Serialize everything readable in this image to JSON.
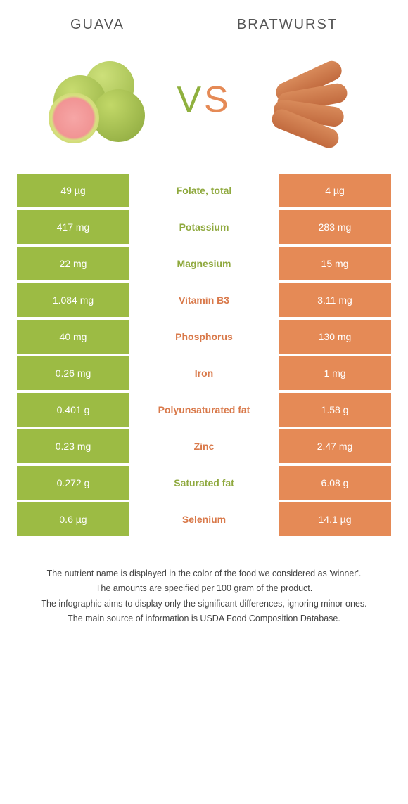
{
  "colors": {
    "left": "#9cbb44",
    "right": "#e58a56",
    "left_text": "#8fa93e",
    "right_text": "#d9794a"
  },
  "header": {
    "left_title": "Guava",
    "right_title": "Bratwurst",
    "vs_v": "V",
    "vs_s": "S"
  },
  "rows": [
    {
      "left": "49 µg",
      "label": "Folate, total",
      "right": "4 µg",
      "winner": "left"
    },
    {
      "left": "417 mg",
      "label": "Potassium",
      "right": "283 mg",
      "winner": "left"
    },
    {
      "left": "22 mg",
      "label": "Magnesium",
      "right": "15 mg",
      "winner": "left"
    },
    {
      "left": "1.084 mg",
      "label": "Vitamin B3",
      "right": "3.11 mg",
      "winner": "right"
    },
    {
      "left": "40 mg",
      "label": "Phosphorus",
      "right": "130 mg",
      "winner": "right"
    },
    {
      "left": "0.26 mg",
      "label": "Iron",
      "right": "1 mg",
      "winner": "right"
    },
    {
      "left": "0.401 g",
      "label": "Polyunsaturated fat",
      "right": "1.58 g",
      "winner": "right"
    },
    {
      "left": "0.23 mg",
      "label": "Zinc",
      "right": "2.47 mg",
      "winner": "right"
    },
    {
      "left": "0.272 g",
      "label": "Saturated fat",
      "right": "6.08 g",
      "winner": "left"
    },
    {
      "left": "0.6 µg",
      "label": "Selenium",
      "right": "14.1 µg",
      "winner": "right"
    }
  ],
  "footnotes": [
    "The nutrient name is displayed in the color of the food we considered as 'winner'.",
    "The amounts are specified per 100 gram of the product.",
    "The infographic aims to display only the significant differences, ignoring minor ones.",
    "The main source of information is USDA Food Composition Database."
  ]
}
